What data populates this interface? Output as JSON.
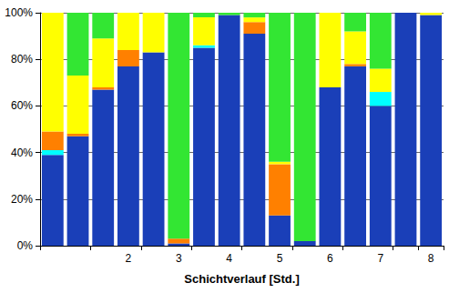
{
  "chart_data": {
    "type": "bar",
    "stacked": true,
    "x_label": "Schichtverlauf [Std.]",
    "categories": [
      null,
      null,
      null,
      "2",
      null,
      "3",
      null,
      "4",
      null,
      "5",
      null,
      "6",
      null,
      "7",
      null,
      "8"
    ],
    "series": [
      {
        "color": "#1a3fb8",
        "values": [
          39,
          47,
          67,
          77,
          83,
          1,
          85,
          99,
          91,
          13,
          2,
          68,
          77,
          60,
          100,
          99
        ]
      },
      {
        "color": "#00ffff",
        "values": [
          2,
          0,
          0,
          0,
          0,
          0,
          1,
          0,
          0,
          0,
          0,
          0,
          0,
          6,
          0,
          0
        ]
      },
      {
        "color": "#ff8000",
        "values": [
          8,
          1,
          1,
          7,
          0,
          2,
          0,
          0,
          5,
          22,
          0,
          0,
          1,
          0,
          0,
          0
        ]
      },
      {
        "color": "#ffff00",
        "values": [
          51,
          25,
          21,
          16,
          17,
          0,
          12,
          0,
          2,
          1,
          0,
          32,
          14,
          10,
          0,
          1
        ]
      },
      {
        "color": "#33e633",
        "values": [
          0,
          27,
          11,
          0,
          0,
          97,
          2,
          1,
          2,
          64,
          98,
          0,
          8,
          24,
          0,
          0
        ]
      }
    ],
    "ylim": [
      0,
      100
    ],
    "yticks": [
      {
        "value": 0,
        "label": "0%"
      },
      {
        "value": 20,
        "label": "20%"
      },
      {
        "value": 40,
        "label": "40%"
      },
      {
        "value": 60,
        "label": "60%"
      },
      {
        "value": 80,
        "label": "80%"
      },
      {
        "value": 100,
        "label": "100%"
      }
    ],
    "grid": true
  }
}
